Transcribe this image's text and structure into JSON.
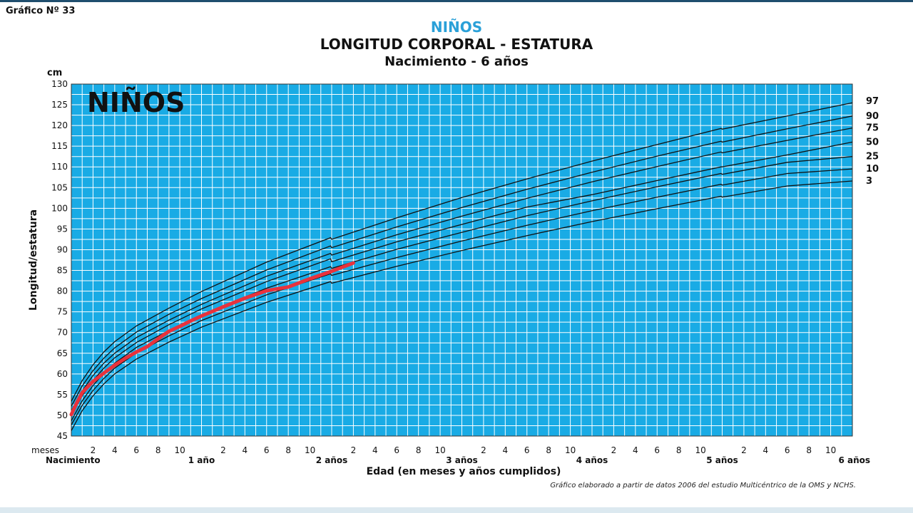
{
  "header": {
    "figure_number": "Gráfico Nº 33",
    "subtitle_top": "NIÑOS",
    "title": "LONGITUD CORPORAL - ESTATURA",
    "range": "Nacimiento - 6 años"
  },
  "colors": {
    "grid_background": "#19abe5",
    "grid_lines": "#ffffff",
    "curve_lines": "#111111",
    "child_curve": "#e8323c",
    "subtitle_blue": "#2aa0d8"
  },
  "chart_data": {
    "type": "line",
    "title": "LONGITUD CORPORAL - ESTATURA",
    "inner_label": "NIÑOS",
    "ylabel": "Longitud/estatura",
    "y_unit": "cm",
    "xlabel": "Edad (en meses y años cumplidos)",
    "x_unit_label": "meses",
    "ylim": [
      45,
      130
    ],
    "xlim_months": [
      0,
      72
    ],
    "y_ticks": [
      45,
      50,
      55,
      60,
      65,
      70,
      75,
      80,
      85,
      90,
      95,
      100,
      105,
      110,
      115,
      120,
      125,
      130
    ],
    "x_month_tick_labels": [
      "2",
      "4",
      "6",
      "8",
      "10"
    ],
    "x_year_labels": [
      {
        "month": 0,
        "label": "Nacimiento"
      },
      {
        "month": 12,
        "label": "1 año"
      },
      {
        "month": 24,
        "label": "2 años"
      },
      {
        "month": 36,
        "label": "3 años"
      },
      {
        "month": 48,
        "label": "4 años"
      },
      {
        "month": 60,
        "label": "5 años"
      },
      {
        "month": 72,
        "label": "6 años"
      }
    ],
    "grid": true,
    "x_months": [
      0,
      1,
      2,
      3,
      4,
      6,
      9,
      12,
      18,
      23.9,
      24,
      30,
      36,
      42,
      48,
      54,
      59.9,
      60,
      66,
      72
    ],
    "series": [
      {
        "name": "97",
        "values": [
          53.4,
          58.4,
          62.2,
          65.3,
          67.8,
          71.6,
          75.9,
          79.9,
          87.0,
          92.9,
          92.5,
          97.7,
          102.6,
          107.1,
          111.4,
          115.4,
          119.3,
          119.1,
          122.3,
          125.5
        ]
      },
      {
        "name": "90",
        "values": [
          52.2,
          57.1,
          60.8,
          63.8,
          66.3,
          70.1,
          74.4,
          78.2,
          85.1,
          90.9,
          90.5,
          95.5,
          100.2,
          104.6,
          108.7,
          112.6,
          116.2,
          116.0,
          119.2,
          122.3
        ]
      },
      {
        "name": "75",
        "values": [
          51.1,
          55.9,
          59.6,
          62.6,
          65.0,
          68.8,
          73.0,
          76.8,
          83.6,
          89.1,
          88.7,
          93.6,
          98.1,
          102.4,
          106.4,
          110.1,
          113.6,
          113.4,
          116.4,
          119.4
        ]
      },
      {
        "name": "50",
        "values": [
          49.9,
          54.7,
          58.4,
          61.4,
          63.9,
          67.6,
          71.9,
          75.7,
          82.3,
          87.8,
          87.1,
          91.9,
          96.1,
          100.3,
          103.3,
          106.7,
          110.0,
          110.0,
          112.9,
          116.0
        ]
      },
      {
        "name": "25",
        "values": [
          48.7,
          53.5,
          57.2,
          60.2,
          62.6,
          66.4,
          70.5,
          74.3,
          80.7,
          85.9,
          85.5,
          90.1,
          94.2,
          98.2,
          101.8,
          105.2,
          108.4,
          108.2,
          111.1,
          112.5
        ]
      },
      {
        "name": "10",
        "values": [
          47.7,
          52.4,
          56.0,
          58.9,
          61.4,
          65.1,
          69.2,
          72.9,
          79.1,
          84.2,
          83.8,
          88.1,
          92.1,
          95.9,
          99.4,
          102.7,
          105.8,
          105.6,
          108.4,
          109.5
        ]
      },
      {
        "name": "3",
        "values": [
          46.3,
          51.1,
          54.7,
          57.6,
          60.0,
          63.6,
          67.7,
          71.3,
          77.3,
          82.3,
          81.9,
          86.0,
          89.8,
          93.4,
          96.8,
          99.9,
          102.9,
          102.7,
          105.4,
          106.6
        ]
      }
    ],
    "child_measurements": {
      "x_months": [
        0,
        0.5,
        1,
        2,
        3,
        4,
        5,
        6,
        7,
        8,
        9,
        10,
        11,
        12,
        14,
        16,
        18,
        20,
        22,
        24,
        26
      ],
      "values": [
        50.2,
        53.0,
        55.5,
        58.2,
        60.2,
        62.1,
        63.8,
        65.3,
        66.6,
        68.5,
        70.3,
        71.5,
        72.8,
        74.0,
        76.2,
        78.3,
        80.1,
        81.0,
        83.0,
        84.8,
        86.8
      ]
    }
  }
}
